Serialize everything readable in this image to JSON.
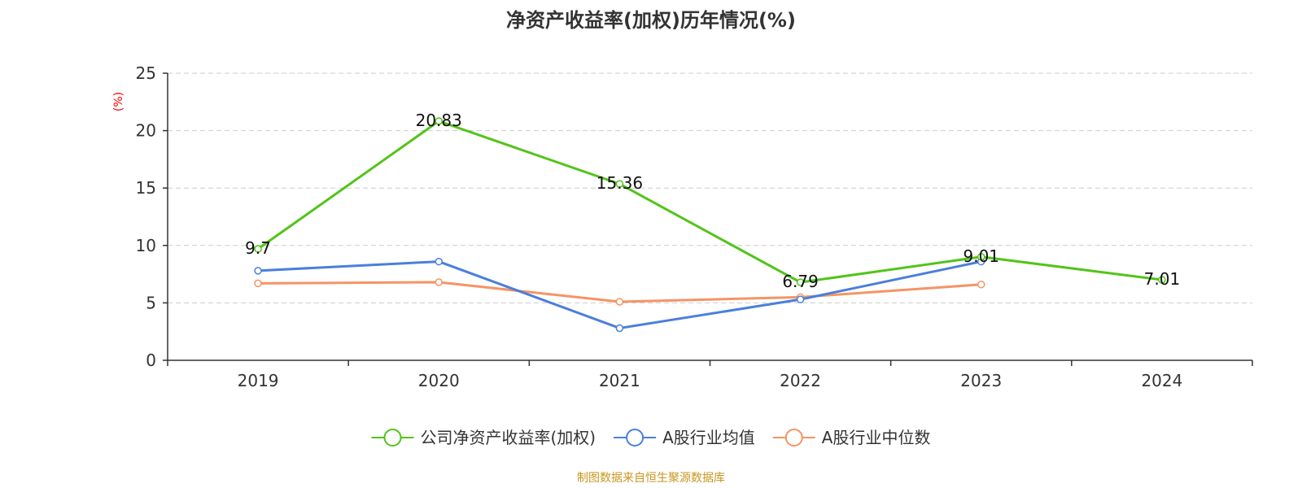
{
  "chart_data": {
    "type": "line",
    "title": "净资产收益率(加权)历年情况(%)",
    "ylabel": "(%)",
    "xlabel": "",
    "ylim": [
      0,
      25
    ],
    "yticks": [
      0,
      5,
      10,
      15,
      20,
      25
    ],
    "categories": [
      "2019",
      "2020",
      "2021",
      "2022",
      "2023",
      "2024"
    ],
    "grid": true,
    "legend_position": "bottom",
    "series": [
      {
        "name": "公司净资产收益率(加权)",
        "color": "#52c41a",
        "values": [
          9.7,
          20.83,
          15.36,
          6.79,
          9.01,
          7.01
        ],
        "labels": [
          "9.7",
          "20.83",
          "15.36",
          "6.79",
          "9.01",
          "7.01"
        ]
      },
      {
        "name": "A股行业均值",
        "color": "#4a7fdc",
        "values": [
          7.8,
          8.6,
          2.8,
          5.3,
          8.6,
          null
        ]
      },
      {
        "name": "A股行业中位数",
        "color": "#f59464",
        "values": [
          6.7,
          6.8,
          5.1,
          5.5,
          6.6,
          null
        ]
      }
    ],
    "source": "制图数据来自恒生聚源数据库",
    "colors": {
      "axis": "#333333",
      "grid": "#cccccc",
      "unit": "#ff0000",
      "source": "#c8961e"
    }
  }
}
